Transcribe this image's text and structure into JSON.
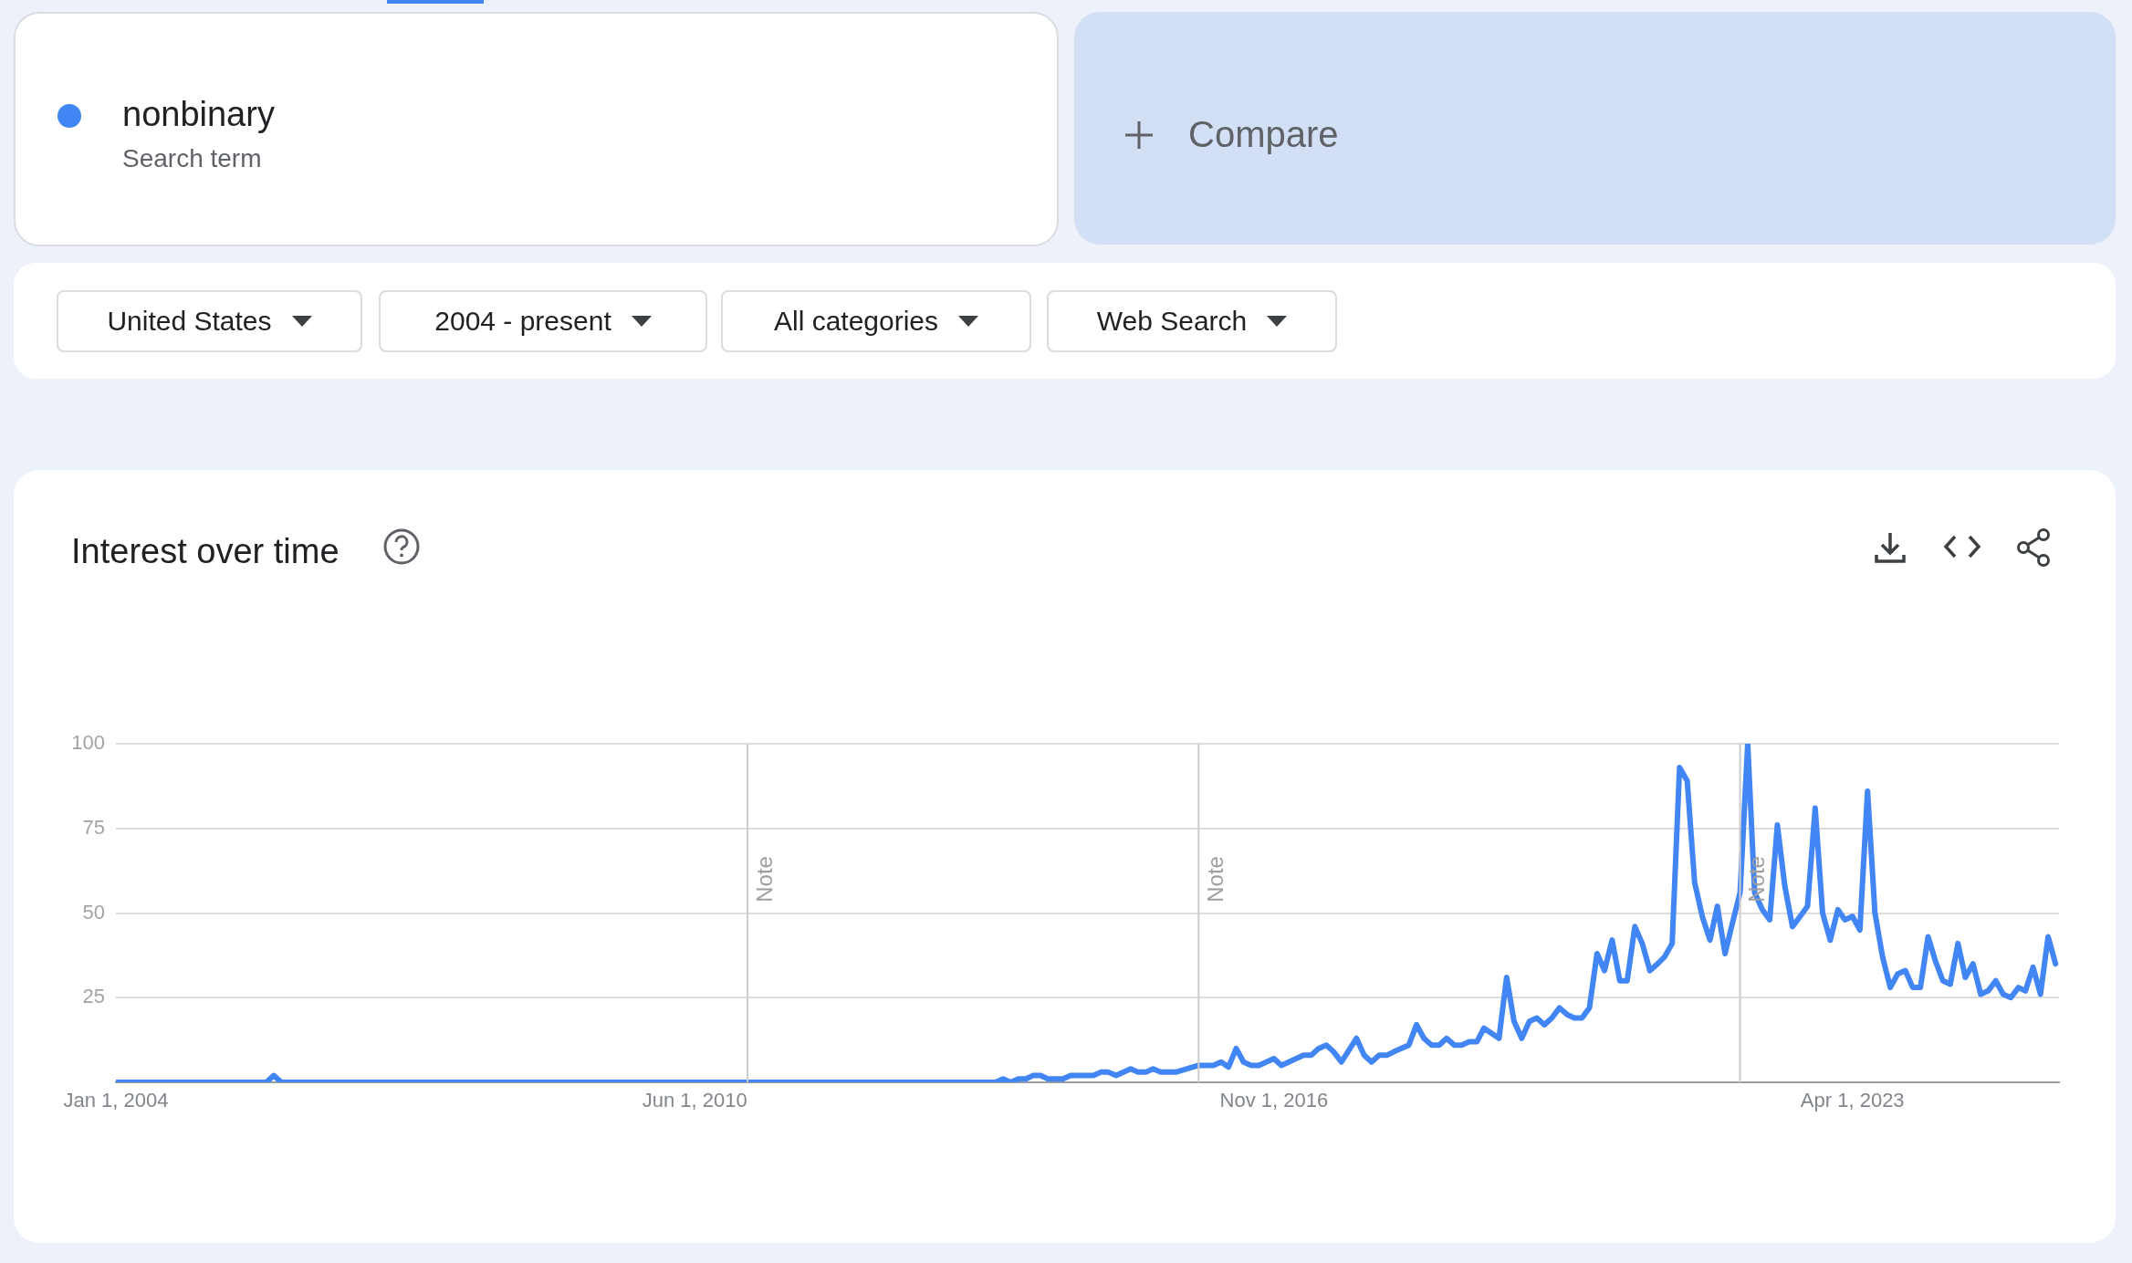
{
  "chart_data": {
    "type": "line",
    "title": "Interest over time",
    "annotations": [
      "Search term",
      "Compare",
      "United States",
      "2004 - present",
      "All categories",
      "Web Search"
    ],
    "series": [
      {
        "name": "nonbinary",
        "color": "#4285f4",
        "x": [
          "2004-01",
          "2005-09",
          "2005-10",
          "2005-11",
          "2013-10",
          "2013-11",
          "2013-12",
          "2014-01",
          "2014-02",
          "2014-03",
          "2014-04",
          "2014-05",
          "2014-07",
          "2014-08",
          "2014-11",
          "2014-12",
          "2015-01",
          "2015-02",
          "2015-04",
          "2015-05",
          "2015-06",
          "2015-07",
          "2015-08",
          "2015-10",
          "2016-01",
          "2016-03",
          "2016-04",
          "2016-05",
          "2016-06",
          "2016-07",
          "2016-08",
          "2016-09",
          "2016-11",
          "2016-12",
          "2017-03",
          "2017-04",
          "2017-05",
          "2017-06",
          "2017-07",
          "2017-08",
          "2017-10",
          "2017-11",
          "2017-12",
          "2018-01",
          "2018-02",
          "2018-03",
          "2018-05",
          "2018-06",
          "2018-07",
          "2018-08",
          "2018-09",
          "2018-10",
          "2018-11",
          "2018-12",
          "2019-01",
          "2019-02",
          "2019-03",
          "2019-05",
          "2019-06",
          "2019-07",
          "2019-08",
          "2019-09",
          "2019-10",
          "2019-11",
          "2019-12",
          "2020-01",
          "2020-02",
          "2020-03",
          "2020-04",
          "2020-05",
          "2020-06",
          "2020-07",
          "2020-08",
          "2020-09",
          "2020-10",
          "2020-11",
          "2020-12",
          "2021-01",
          "2021-02",
          "2021-03",
          "2021-04",
          "2021-05",
          "2021-06",
          "2021-07",
          "2021-08",
          "2021-09",
          "2021-10",
          "2021-11",
          "2021-12",
          "2022-01",
          "2022-02",
          "2022-03",
          "2022-04",
          "2022-05",
          "2022-06",
          "2022-07",
          "2022-08",
          "2022-09",
          "2022-10",
          "2022-11",
          "2022-12",
          "2023-01",
          "2023-02",
          "2023-03",
          "2023-04",
          "2023-05",
          "2023-06",
          "2023-07",
          "2023-08",
          "2023-09",
          "2023-10",
          "2023-11",
          "2023-12",
          "2024-01",
          "2024-02",
          "2024-03",
          "2024-04",
          "2024-05",
          "2024-06",
          "2024-07",
          "2024-08",
          "2024-09",
          "2024-10",
          "2024-11",
          "2024-12",
          "2025-01",
          "2025-02",
          "2025-03",
          "2025-04",
          "2025-05",
          "2025-06",
          "2025-07"
        ],
        "values": [
          0,
          0,
          2,
          0,
          0,
          1,
          0,
          1,
          1,
          2,
          2,
          1,
          1,
          2,
          2,
          3,
          3,
          2,
          4,
          3,
          3,
          4,
          3,
          3,
          5,
          5,
          6,
          4.5,
          10,
          6,
          5,
          5,
          7,
          5,
          8,
          8,
          10,
          11,
          9,
          6,
          13,
          8,
          6,
          8,
          8,
          9,
          11,
          17,
          13,
          11,
          11,
          13,
          11,
          11,
          12,
          12,
          16,
          13,
          31,
          18,
          13,
          18,
          19,
          17,
          19,
          22,
          20,
          19,
          19,
          22,
          38,
          33,
          42,
          30,
          30,
          46,
          41,
          33,
          35,
          37,
          41,
          93,
          89,
          59,
          49,
          42,
          52,
          38,
          47,
          56,
          100,
          56,
          51,
          48,
          76,
          58,
          46,
          49,
          52,
          81,
          50,
          42,
          51,
          48,
          49,
          45,
          86,
          50,
          37,
          28,
          32,
          33,
          28,
          28,
          43,
          36,
          30,
          29,
          41,
          31,
          35,
          26,
          27,
          30,
          26,
          25,
          28,
          27,
          34,
          26,
          43,
          35
        ]
      }
    ],
    "xlim": [
      "2004-01-01",
      "2025-07-15"
    ],
    "xticks": [
      {
        "value": "2004-01-01",
        "label": "Jan 1, 2004"
      },
      {
        "value": "2010-06-01",
        "label": "Jun 1, 2010"
      },
      {
        "value": "2016-11-01",
        "label": "Nov 1, 2016"
      },
      {
        "value": "2023-04-01",
        "label": "Apr 1, 2023"
      }
    ],
    "ylim": [
      0,
      100
    ],
    "yticks": [
      25,
      50,
      75,
      100
    ],
    "ref_lines": [
      {
        "axis": "x",
        "value": "2011-01-01",
        "label": "Note",
        "color": "#cccccc"
      },
      {
        "axis": "x",
        "value": "2016-01-01",
        "label": "Note",
        "color": "#cccccc"
      },
      {
        "axis": "x",
        "value": "2022-01-01",
        "label": "Note",
        "color": "#cccccc"
      }
    ],
    "grid": "y",
    "legend": "top left",
    "marker": "none",
    "line_style": "solid"
  }
}
